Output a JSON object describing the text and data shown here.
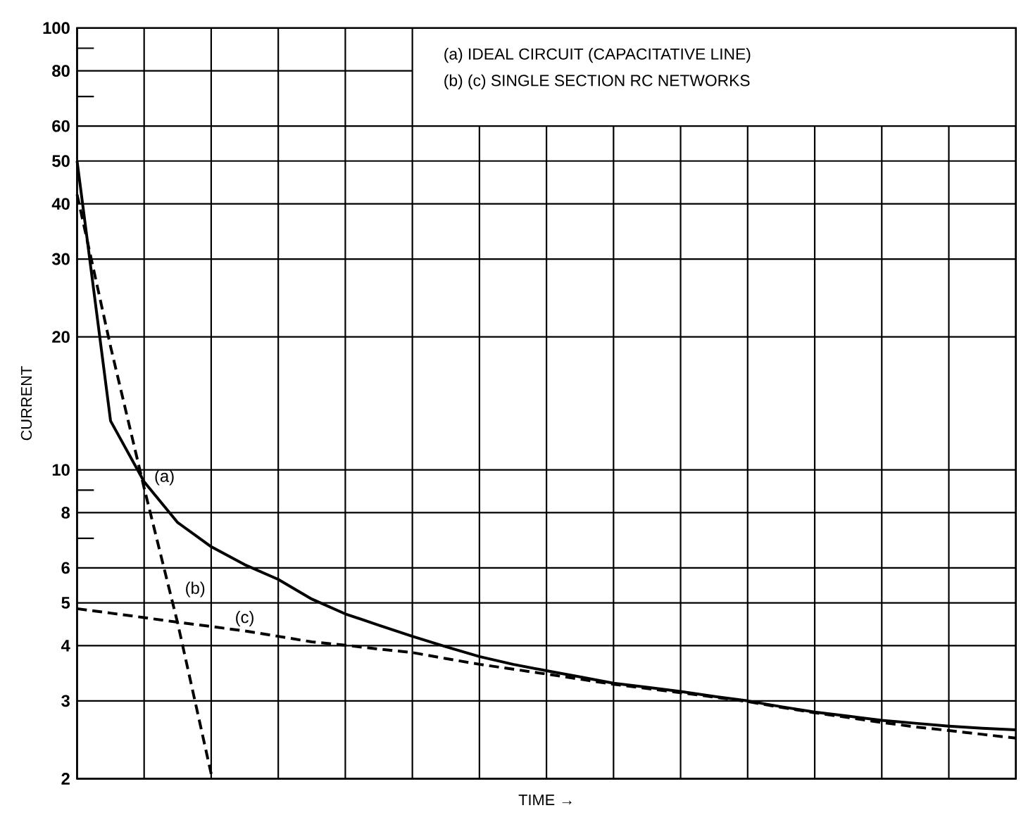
{
  "chart_data": {
    "type": "line",
    "xlabel": "TIME →",
    "ylabel": "CURRENT",
    "annotations": [
      "(a)  IDEAL CIRCUIT  (CAPACITATIVE LINE)",
      "(b) (c)  SINGLE SECTION RC NETWORKS"
    ],
    "categories": [
      null,
      null,
      null,
      null,
      null,
      null,
      null,
      null,
      null,
      null,
      null,
      null,
      null,
      null,
      null,
      null,
      null,
      null,
      null,
      null,
      null,
      null,
      null,
      null,
      null,
      null,
      null,
      null,
      null
    ],
    "ylim": [
      2,
      100
    ],
    "log": "y",
    "yticks": [
      2,
      3,
      4,
      5,
      6,
      {
        "value": 7,
        "label": null
      },
      8,
      {
        "value": 9,
        "label": null
      },
      10,
      20,
      30,
      40,
      50,
      60,
      {
        "value": 70,
        "label": null
      },
      80,
      {
        "value": 90,
        "label": null
      },
      100
    ],
    "grid": true,
    "tick_labels": "y",
    "series": [
      {
        "name": "(a)",
        "color": "#000000",
        "line_style": "solid",
        "values": [
          50,
          12.9,
          9.4,
          7.6,
          6.7,
          6.1,
          5.65,
          5.1,
          4.72,
          4.45,
          4.2,
          3.98,
          3.78,
          3.63,
          3.51,
          3.4,
          3.29,
          3.22,
          3.15,
          3.07,
          3.0,
          2.91,
          2.83,
          2.77,
          2.71,
          2.67,
          2.63,
          2.6,
          2.58
        ]
      },
      {
        "name": "(b)",
        "color": "#000000",
        "line_style": "dashed",
        "values": [
          42,
          19,
          9.1,
          4.5,
          2.05,
          null,
          null,
          null,
          null,
          null,
          null,
          null,
          null,
          null,
          null,
          null,
          null,
          null,
          null,
          null,
          null,
          null,
          null,
          null,
          null,
          null,
          null,
          null,
          null
        ]
      },
      {
        "name": "(c)",
        "color": "#000000",
        "line_style": "dashed",
        "values": [
          4.85,
          4.74,
          4.63,
          4.52,
          4.42,
          4.32,
          4.2,
          4.08,
          4.01,
          3.93,
          3.86,
          3.74,
          3.63,
          3.54,
          3.45,
          3.36,
          3.27,
          3.2,
          3.13,
          3.06,
          2.99,
          2.9,
          2.82,
          2.75,
          2.68,
          2.62,
          2.57,
          2.52,
          2.47
        ]
      }
    ]
  }
}
